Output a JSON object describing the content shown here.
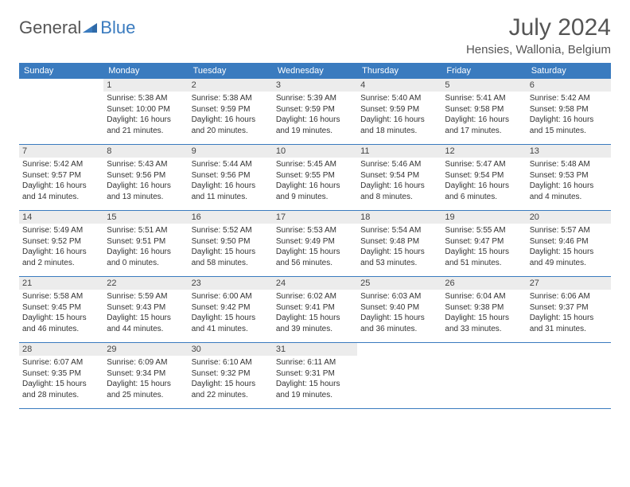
{
  "logo": {
    "general": "General",
    "blue": "Blue"
  },
  "title": "July 2024",
  "location": "Hensies, Wallonia, Belgium",
  "colors": {
    "header_bg": "#3a7bbf",
    "daynum_bg": "#ececec",
    "border": "#3a7bbf",
    "text": "#333333",
    "title_text": "#555555"
  },
  "weekdays": [
    "Sunday",
    "Monday",
    "Tuesday",
    "Wednesday",
    "Thursday",
    "Friday",
    "Saturday"
  ],
  "start_weekday": 1,
  "days": [
    {
      "n": "1",
      "sunrise": "5:38 AM",
      "sunset": "10:00 PM",
      "daylight": "16 hours and 21 minutes."
    },
    {
      "n": "2",
      "sunrise": "5:38 AM",
      "sunset": "9:59 PM",
      "daylight": "16 hours and 20 minutes."
    },
    {
      "n": "3",
      "sunrise": "5:39 AM",
      "sunset": "9:59 PM",
      "daylight": "16 hours and 19 minutes."
    },
    {
      "n": "4",
      "sunrise": "5:40 AM",
      "sunset": "9:59 PM",
      "daylight": "16 hours and 18 minutes."
    },
    {
      "n": "5",
      "sunrise": "5:41 AM",
      "sunset": "9:58 PM",
      "daylight": "16 hours and 17 minutes."
    },
    {
      "n": "6",
      "sunrise": "5:42 AM",
      "sunset": "9:58 PM",
      "daylight": "16 hours and 15 minutes."
    },
    {
      "n": "7",
      "sunrise": "5:42 AM",
      "sunset": "9:57 PM",
      "daylight": "16 hours and 14 minutes."
    },
    {
      "n": "8",
      "sunrise": "5:43 AM",
      "sunset": "9:56 PM",
      "daylight": "16 hours and 13 minutes."
    },
    {
      "n": "9",
      "sunrise": "5:44 AM",
      "sunset": "9:56 PM",
      "daylight": "16 hours and 11 minutes."
    },
    {
      "n": "10",
      "sunrise": "5:45 AM",
      "sunset": "9:55 PM",
      "daylight": "16 hours and 9 minutes."
    },
    {
      "n": "11",
      "sunrise": "5:46 AM",
      "sunset": "9:54 PM",
      "daylight": "16 hours and 8 minutes."
    },
    {
      "n": "12",
      "sunrise": "5:47 AM",
      "sunset": "9:54 PM",
      "daylight": "16 hours and 6 minutes."
    },
    {
      "n": "13",
      "sunrise": "5:48 AM",
      "sunset": "9:53 PM",
      "daylight": "16 hours and 4 minutes."
    },
    {
      "n": "14",
      "sunrise": "5:49 AM",
      "sunset": "9:52 PM",
      "daylight": "16 hours and 2 minutes."
    },
    {
      "n": "15",
      "sunrise": "5:51 AM",
      "sunset": "9:51 PM",
      "daylight": "16 hours and 0 minutes."
    },
    {
      "n": "16",
      "sunrise": "5:52 AM",
      "sunset": "9:50 PM",
      "daylight": "15 hours and 58 minutes."
    },
    {
      "n": "17",
      "sunrise": "5:53 AM",
      "sunset": "9:49 PM",
      "daylight": "15 hours and 56 minutes."
    },
    {
      "n": "18",
      "sunrise": "5:54 AM",
      "sunset": "9:48 PM",
      "daylight": "15 hours and 53 minutes."
    },
    {
      "n": "19",
      "sunrise": "5:55 AM",
      "sunset": "9:47 PM",
      "daylight": "15 hours and 51 minutes."
    },
    {
      "n": "20",
      "sunrise": "5:57 AM",
      "sunset": "9:46 PM",
      "daylight": "15 hours and 49 minutes."
    },
    {
      "n": "21",
      "sunrise": "5:58 AM",
      "sunset": "9:45 PM",
      "daylight": "15 hours and 46 minutes."
    },
    {
      "n": "22",
      "sunrise": "5:59 AM",
      "sunset": "9:43 PM",
      "daylight": "15 hours and 44 minutes."
    },
    {
      "n": "23",
      "sunrise": "6:00 AM",
      "sunset": "9:42 PM",
      "daylight": "15 hours and 41 minutes."
    },
    {
      "n": "24",
      "sunrise": "6:02 AM",
      "sunset": "9:41 PM",
      "daylight": "15 hours and 39 minutes."
    },
    {
      "n": "25",
      "sunrise": "6:03 AM",
      "sunset": "9:40 PM",
      "daylight": "15 hours and 36 minutes."
    },
    {
      "n": "26",
      "sunrise": "6:04 AM",
      "sunset": "9:38 PM",
      "daylight": "15 hours and 33 minutes."
    },
    {
      "n": "27",
      "sunrise": "6:06 AM",
      "sunset": "9:37 PM",
      "daylight": "15 hours and 31 minutes."
    },
    {
      "n": "28",
      "sunrise": "6:07 AM",
      "sunset": "9:35 PM",
      "daylight": "15 hours and 28 minutes."
    },
    {
      "n": "29",
      "sunrise": "6:09 AM",
      "sunset": "9:34 PM",
      "daylight": "15 hours and 25 minutes."
    },
    {
      "n": "30",
      "sunrise": "6:10 AM",
      "sunset": "9:32 PM",
      "daylight": "15 hours and 22 minutes."
    },
    {
      "n": "31",
      "sunrise": "6:11 AM",
      "sunset": "9:31 PM",
      "daylight": "15 hours and 19 minutes."
    }
  ]
}
